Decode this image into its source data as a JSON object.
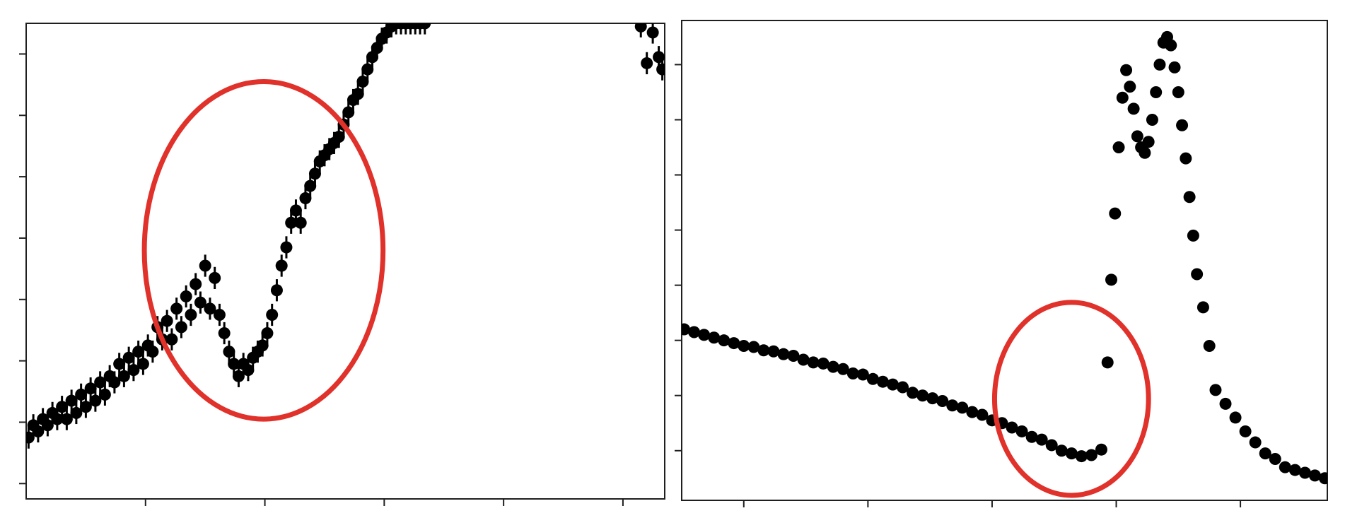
{
  "chart_data": [
    {
      "type": "scatter",
      "title": "",
      "xlabel": "",
      "ylabel": "",
      "xlim": [
        0,
        5.35
      ],
      "ylim": [
        0,
        7.75
      ],
      "xticks": [
        1,
        2,
        3,
        4,
        5
      ],
      "yticks": [
        0.25,
        1.25,
        2.25,
        3.25,
        4.25,
        5.25,
        6.25,
        7.25
      ],
      "tick_labels_visible": false,
      "grid": false,
      "error_bars": true,
      "marker_color": "#000000",
      "series": [
        {
          "x": [
            0.02,
            0.06,
            0.1,
            0.14,
            0.18,
            0.22,
            0.26,
            0.3,
            0.34,
            0.38,
            0.42,
            0.46,
            0.5,
            0.54,
            0.58,
            0.62,
            0.66,
            0.7,
            0.74,
            0.78,
            0.82,
            0.86,
            0.9,
            0.94,
            0.98,
            1.02,
            1.06,
            1.1,
            1.14,
            1.18,
            1.22,
            1.26,
            1.3,
            1.34,
            1.38,
            1.42,
            1.46,
            1.5,
            1.54,
            1.58,
            1.62,
            1.66,
            1.7,
            1.74,
            1.78,
            1.82,
            1.86,
            1.9,
            1.94,
            1.98,
            2.02,
            2.06,
            2.1,
            2.14,
            2.18,
            2.22,
            2.26,
            2.3,
            2.34,
            2.38,
            2.42,
            2.46,
            2.5,
            2.54,
            2.58,
            2.62,
            2.66,
            2.7,
            2.74,
            2.78,
            2.82,
            2.86,
            2.9,
            2.94,
            2.98,
            3.02,
            3.06,
            3.1,
            3.14,
            3.18,
            3.22,
            3.26,
            3.3,
            3.34,
            5.15,
            5.2,
            5.25,
            5.3,
            5.33
          ],
          "y": [
            1.0,
            1.2,
            1.1,
            1.3,
            1.2,
            1.4,
            1.3,
            1.5,
            1.3,
            1.6,
            1.4,
            1.7,
            1.5,
            1.8,
            1.6,
            1.9,
            1.7,
            2.0,
            1.9,
            2.2,
            2.0,
            2.3,
            2.1,
            2.4,
            2.2,
            2.5,
            2.4,
            2.8,
            2.6,
            2.9,
            2.6,
            3.1,
            2.8,
            3.3,
            3.0,
            3.5,
            3.2,
            3.8,
            3.1,
            3.6,
            3.0,
            2.7,
            2.4,
            2.2,
            2.0,
            2.2,
            2.1,
            2.3,
            2.4,
            2.5,
            2.7,
            3.0,
            3.4,
            3.8,
            4.1,
            4.5,
            4.7,
            4.5,
            4.9,
            5.1,
            5.3,
            5.5,
            5.6,
            5.7,
            5.8,
            5.9,
            6.1,
            6.3,
            6.5,
            6.6,
            6.8,
            7.0,
            7.2,
            7.35,
            7.5,
            7.6,
            7.7,
            7.75,
            7.75,
            7.75,
            7.75,
            7.75,
            7.75,
            7.75,
            7.7,
            7.1,
            7.6,
            7.2,
            7.0
          ],
          "yerr": [
            0.18,
            0.18,
            0.18,
            0.18,
            0.18,
            0.18,
            0.18,
            0.18,
            0.18,
            0.18,
            0.18,
            0.18,
            0.18,
            0.18,
            0.18,
            0.18,
            0.18,
            0.18,
            0.18,
            0.18,
            0.18,
            0.18,
            0.18,
            0.18,
            0.18,
            0.18,
            0.18,
            0.18,
            0.18,
            0.18,
            0.18,
            0.18,
            0.18,
            0.18,
            0.18,
            0.18,
            0.18,
            0.18,
            0.18,
            0.18,
            0.18,
            0.18,
            0.18,
            0.18,
            0.18,
            0.18,
            0.18,
            0.18,
            0.18,
            0.18,
            0.18,
            0.18,
            0.18,
            0.18,
            0.18,
            0.18,
            0.18,
            0.18,
            0.18,
            0.18,
            0.18,
            0.18,
            0.18,
            0.18,
            0.18,
            0.18,
            0.18,
            0.18,
            0.18,
            0.18,
            0.18,
            0.18,
            0.18,
            0.18,
            0.18,
            0.18,
            0.18,
            0.18,
            0.18,
            0.18,
            0.18,
            0.18,
            0.18,
            0.18,
            0.18,
            0.18,
            0.18,
            0.18,
            0.18
          ]
        }
      ],
      "annotation": {
        "shape": "ellipse",
        "color": "#e0312b",
        "center": [
          1.99,
          4.05
        ],
        "radii": [
          1.0,
          2.75
        ]
      }
    },
    {
      "type": "scatter",
      "title": "",
      "xlabel": "",
      "ylabel": "",
      "xlim": [
        0,
        5.2
      ],
      "ylim": [
        0,
        8.7
      ],
      "xticks": [
        0.5,
        1.5,
        2.5,
        3.5,
        4.5
      ],
      "yticks": [
        0.9,
        1.9,
        2.9,
        3.9,
        4.9,
        5.9,
        6.9,
        7.9
      ],
      "tick_labels_visible": false,
      "grid": false,
      "error_bars": false,
      "marker_color": "#000000",
      "series": [
        {
          "x": [
            0.02,
            0.1,
            0.18,
            0.26,
            0.34,
            0.42,
            0.5,
            0.58,
            0.66,
            0.74,
            0.82,
            0.9,
            0.98,
            1.06,
            1.14,
            1.22,
            1.3,
            1.38,
            1.46,
            1.54,
            1.62,
            1.7,
            1.78,
            1.86,
            1.94,
            2.02,
            2.1,
            2.18,
            2.26,
            2.34,
            2.42,
            2.5,
            2.58,
            2.66,
            2.74,
            2.82,
            2.9,
            2.98,
            3.06,
            3.14,
            3.22,
            3.3,
            3.38,
            3.43,
            3.46,
            3.49,
            3.52,
            3.55,
            3.58,
            3.61,
            3.64,
            3.67,
            3.7,
            3.73,
            3.76,
            3.79,
            3.82,
            3.85,
            3.88,
            3.91,
            3.94,
            3.97,
            4.0,
            4.03,
            4.06,
            4.09,
            4.12,
            4.15,
            4.2,
            4.25,
            4.3,
            4.38,
            4.46,
            4.54,
            4.62,
            4.7,
            4.78,
            4.86,
            4.94,
            5.02,
            5.1,
            5.18
          ],
          "y": [
            3.1,
            3.05,
            3.0,
            2.95,
            2.9,
            2.85,
            2.8,
            2.78,
            2.72,
            2.7,
            2.65,
            2.62,
            2.55,
            2.5,
            2.48,
            2.42,
            2.38,
            2.3,
            2.28,
            2.2,
            2.15,
            2.1,
            2.05,
            1.95,
            1.9,
            1.85,
            1.8,
            1.72,
            1.68,
            1.6,
            1.55,
            1.45,
            1.4,
            1.32,
            1.25,
            1.15,
            1.1,
            1.0,
            0.9,
            0.85,
            0.8,
            0.82,
            0.92,
            2.5,
            4.0,
            5.2,
            6.4,
            7.3,
            7.8,
            7.5,
            7.1,
            6.6,
            6.4,
            6.3,
            6.5,
            6.9,
            7.4,
            7.9,
            8.3,
            8.4,
            8.25,
            7.85,
            7.4,
            6.8,
            6.2,
            5.5,
            4.8,
            4.1,
            3.5,
            2.8,
            2.0,
            1.75,
            1.5,
            1.25,
            1.05,
            0.85,
            0.75,
            0.6,
            0.55,
            0.5,
            0.45,
            0.4
          ]
        }
      ],
      "annotation": {
        "shape": "ellipse",
        "color": "#e0312b",
        "center": [
          3.14,
          1.84
        ],
        "radii": [
          0.62,
          1.75
        ]
      }
    }
  ]
}
